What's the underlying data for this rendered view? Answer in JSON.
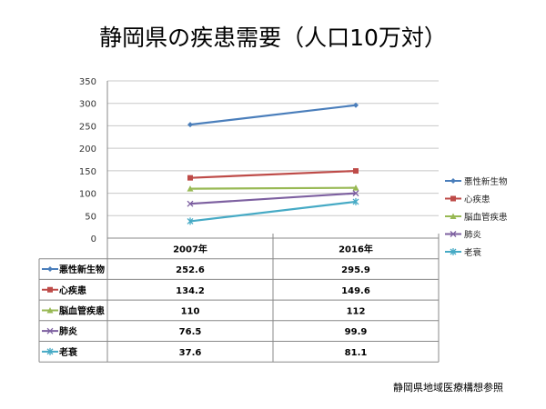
{
  "title": "静岡県の疾患需要（人口10万対）",
  "footer": "静岡県地域医療構想参照",
  "chart_data": {
    "type": "line",
    "title": "静岡県の疾患需要（人口10万対）",
    "categories": [
      "2007年",
      "2016年"
    ],
    "ylim": [
      0,
      350
    ],
    "yticks": [
      0,
      50,
      100,
      150,
      200,
      250,
      300,
      350
    ],
    "grid": true,
    "legend": "right",
    "data_table": true,
    "series": [
      {
        "name": "悪性新生物",
        "values": [
          252.6,
          295.9
        ],
        "labels": [
          "252.6",
          "295.9"
        ],
        "color": "#4a7ebb",
        "marker": "diamond"
      },
      {
        "name": "心疾患",
        "values": [
          134.2,
          149.6
        ],
        "labels": [
          "134.2",
          "149.6"
        ],
        "color": "#be4b48",
        "marker": "square"
      },
      {
        "name": "脳血管疾患",
        "values": [
          110,
          112
        ],
        "labels": [
          "110",
          "112"
        ],
        "color": "#98b954",
        "marker": "triangle"
      },
      {
        "name": "肺炎",
        "values": [
          76.5,
          99.9
        ],
        "labels": [
          "76.5",
          "99.9"
        ],
        "color": "#7d60a0",
        "marker": "x"
      },
      {
        "name": "老衰",
        "values": [
          37.6,
          81.1
        ],
        "labels": [
          "37.6",
          "81.1"
        ],
        "color": "#46aac5",
        "marker": "star"
      }
    ]
  }
}
